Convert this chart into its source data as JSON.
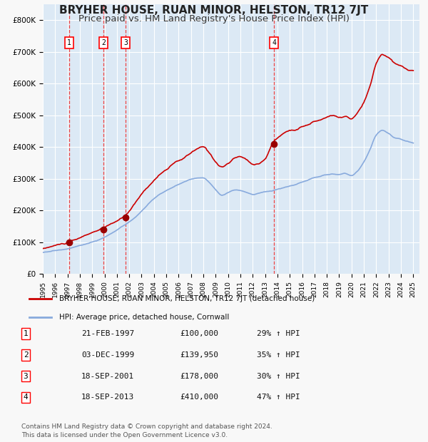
{
  "title": "BRYHER HOUSE, RUAN MINOR, HELSTON, TR12 7JT",
  "subtitle": "Price paid vs. HM Land Registry's House Price Index (HPI)",
  "xlim": [
    1995.0,
    2025.5
  ],
  "ylim": [
    0,
    850000
  ],
  "yticks": [
    0,
    100000,
    200000,
    300000,
    400000,
    500000,
    600000,
    700000,
    800000
  ],
  "ytick_labels": [
    "£0",
    "£100K",
    "£200K",
    "£300K",
    "£400K",
    "£500K",
    "£600K",
    "£700K",
    "£800K"
  ],
  "xtick_years": [
    1995,
    1996,
    1997,
    1998,
    1999,
    2000,
    2001,
    2002,
    2003,
    2004,
    2005,
    2006,
    2007,
    2008,
    2009,
    2010,
    2011,
    2012,
    2013,
    2014,
    2015,
    2016,
    2017,
    2018,
    2019,
    2020,
    2021,
    2022,
    2023,
    2024,
    2025
  ],
  "background_color": "#dce9f5",
  "plot_bg_color": "#dce9f5",
  "grid_color": "#ffffff",
  "red_line_color": "#cc0000",
  "blue_line_color": "#88aadd",
  "sale_marker_color": "#990000",
  "dashed_line_color": "#ee4444",
  "transactions": [
    {
      "num": 1,
      "date": 1997.13,
      "price": 100000,
      "label": "21-FEB-1997",
      "price_str": "£100,000",
      "hpi_str": "29% ↑ HPI"
    },
    {
      "num": 2,
      "date": 1999.92,
      "price": 139950,
      "label": "03-DEC-1999",
      "price_str": "£139,950",
      "hpi_str": "35% ↑ HPI"
    },
    {
      "num": 3,
      "date": 2001.72,
      "price": 178000,
      "label": "18-SEP-2001",
      "price_str": "£178,000",
      "hpi_str": "30% ↑ HPI"
    },
    {
      "num": 4,
      "date": 2013.72,
      "price": 410000,
      "label": "18-SEP-2013",
      "price_str": "£410,000",
      "hpi_str": "47% ↑ HPI"
    }
  ],
  "legend_label_red": "BRYHER HOUSE, RUAN MINOR, HELSTON, TR12 7JT (detached house)",
  "legend_label_blue": "HPI: Average price, detached house, Cornwall",
  "footer_text": "Contains HM Land Registry data © Crown copyright and database right 2024.\nThis data is licensed under the Open Government Licence v3.0.",
  "title_fontsize": 11,
  "subtitle_fontsize": 9.5
}
